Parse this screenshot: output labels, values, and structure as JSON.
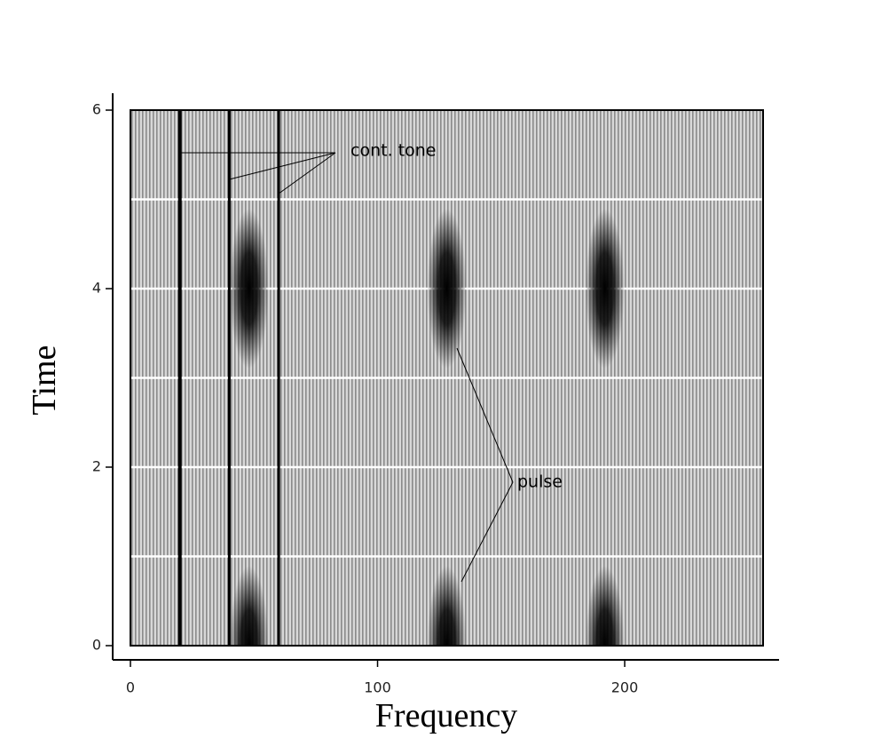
{
  "chart_data": {
    "type": "spectrogram",
    "x_label": "Frequency",
    "y_label": "Time",
    "xlim": [
      0,
      256
    ],
    "ylim": [
      0,
      6
    ],
    "xticks": [
      0,
      100,
      200
    ],
    "yticks": [
      0,
      2,
      4,
      6
    ],
    "y_minor_ticks": [
      1,
      3,
      5
    ],
    "grid": true,
    "tones": {
      "name": "cont. tone",
      "x": [
        20,
        40,
        60
      ]
    },
    "pulses": {
      "name": "pulse",
      "x": [
        48,
        128,
        192,
        48,
        128,
        192
      ],
      "y": [
        4,
        4,
        4,
        0,
        0,
        0
      ]
    }
  }
}
